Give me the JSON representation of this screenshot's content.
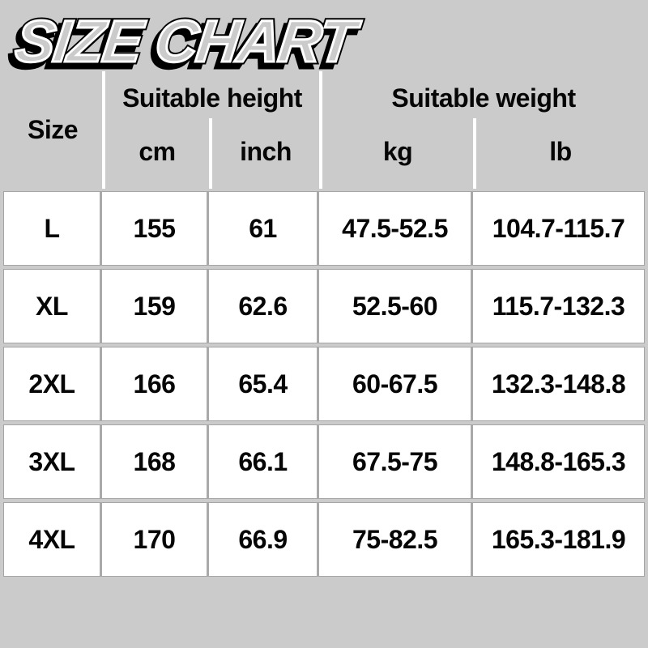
{
  "title": {
    "text": "SIZE CHART"
  },
  "table": {
    "header": {
      "size": "Size",
      "height_group": "Suitable height",
      "weight_group": "Suitable weight",
      "cm": "cm",
      "inch": "inch",
      "kg": "kg",
      "lb": "lb"
    },
    "rows": [
      {
        "size": "L",
        "cm": "155",
        "inch": "61",
        "kg": "47.5-52.5",
        "lb": "104.7-115.7"
      },
      {
        "size": "XL",
        "cm": "159",
        "inch": "62.6",
        "kg": "52.5-60",
        "lb": "115.7-132.3"
      },
      {
        "size": "2XL",
        "cm": "166",
        "inch": "65.4",
        "kg": "60-67.5",
        "lb": "132.3-148.8"
      },
      {
        "size": "3XL",
        "cm": "168",
        "inch": "66.1",
        "kg": "67.5-75",
        "lb": "148.8-165.3"
      },
      {
        "size": "4XL",
        "cm": "170",
        "inch": "66.9",
        "kg": "75-82.5",
        "lb": "165.3-181.9"
      }
    ]
  },
  "colors": {
    "background": "#cbcbcb",
    "cell_background": "#ffffff",
    "grid_line": "#a9a9a9",
    "header_divider": "#ffffff",
    "text": "#060606",
    "title_fill": "#cbcbcb",
    "title_rim": "#ffffff",
    "title_outline": "#000000"
  },
  "chart_data": {
    "type": "table",
    "title": "SIZE CHART",
    "column_groups": [
      "Size",
      "Suitable height",
      "Suitable weight"
    ],
    "columns": [
      "Size",
      "cm",
      "inch",
      "kg",
      "lb"
    ],
    "rows": [
      [
        "L",
        "155",
        "61",
        "47.5-52.5",
        "104.7-115.7"
      ],
      [
        "XL",
        "159",
        "62.6",
        "52.5-60",
        "115.7-132.3"
      ],
      [
        "2XL",
        "166",
        "65.4",
        "60-67.5",
        "132.3-148.8"
      ],
      [
        "3XL",
        "168",
        "66.1",
        "67.5-75",
        "148.8-165.3"
      ],
      [
        "4XL",
        "170",
        "66.9",
        "75-82.5",
        "165.3-181.9"
      ]
    ]
  }
}
